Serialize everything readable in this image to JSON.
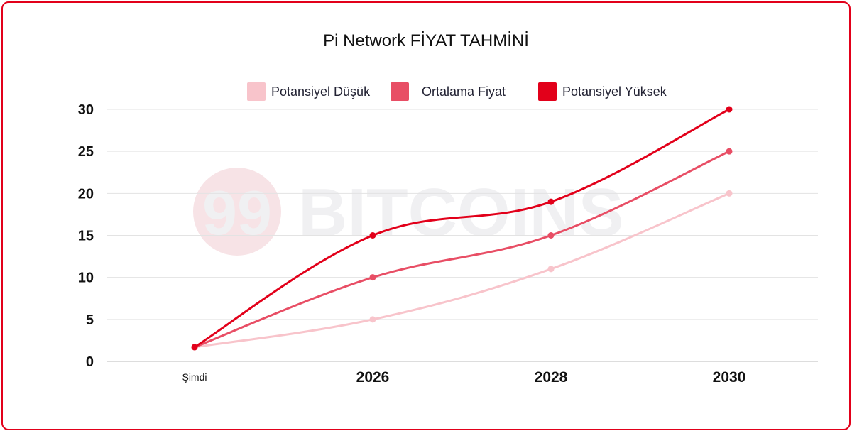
{
  "watermark": {
    "logo_text": "99",
    "brand_text": "BITCOINS"
  },
  "colors": {
    "frame": "#e2001a",
    "low": "#f8c4cb",
    "avg": "#e84e65",
    "high": "#e2001a"
  },
  "chart_data": {
    "type": "line",
    "title": "Pi Network FİYAT TAHMİNİ",
    "xlabel": "",
    "ylabel": "",
    "categories": [
      "Şimdi",
      "2026",
      "2028",
      "2030"
    ],
    "ylim": [
      0,
      30
    ],
    "yticks": [
      "0",
      "5",
      "10",
      "15",
      "20",
      "25",
      "30"
    ],
    "grid": true,
    "legend_position": "top",
    "series": [
      {
        "name": "Potansiyel Düşük",
        "color": "#f8c4cb",
        "values": [
          1.7,
          5,
          11,
          20
        ]
      },
      {
        "name": "Ortalama Fiyat",
        "color": "#e84e65",
        "values": [
          1.7,
          10,
          15,
          25
        ]
      },
      {
        "name": "Potansiyel Yüksek",
        "color": "#e2001a",
        "values": [
          1.7,
          15,
          19,
          30
        ]
      }
    ]
  }
}
